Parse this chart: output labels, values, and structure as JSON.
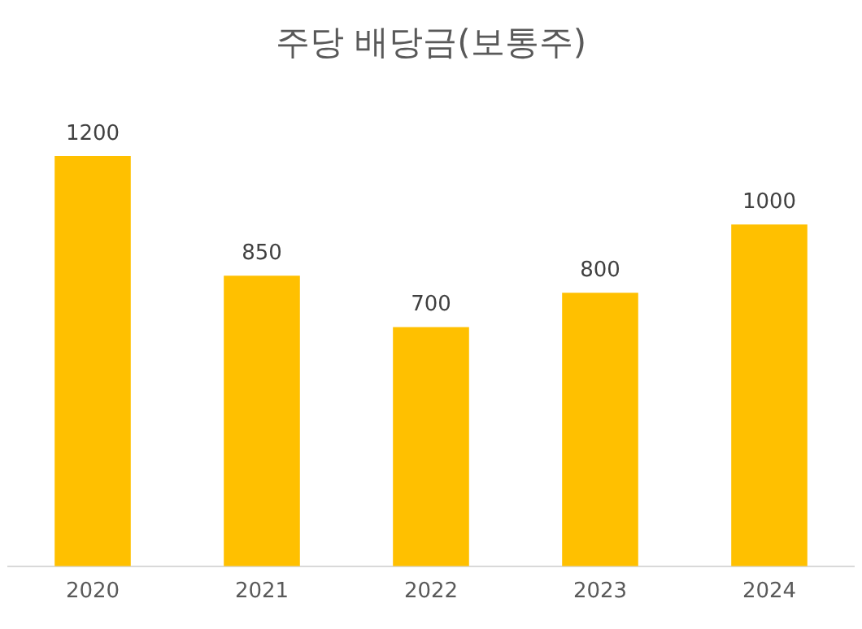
{
  "chart_data": {
    "type": "bar",
    "title": "주당 배당금(보통주)",
    "categories": [
      "2020",
      "2021",
      "2022",
      "2023",
      "2024"
    ],
    "values": [
      1200,
      850,
      700,
      800,
      1000
    ],
    "color": "#ffc000",
    "data_labels": true,
    "grid": false,
    "legend": false,
    "tick_labels": "x"
  }
}
